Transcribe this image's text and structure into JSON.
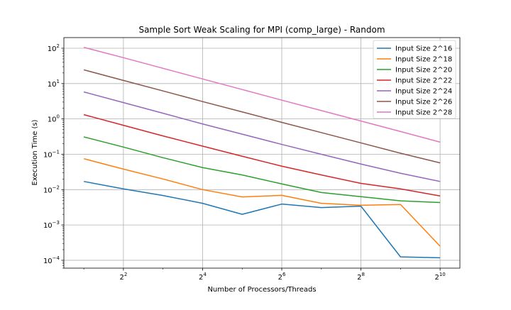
{
  "chart_data": {
    "type": "line",
    "title": "Sample Sort Weak Scaling for MPI (comp_large) - Random",
    "xlabel": "Number of Processors/Threads",
    "ylabel": "Execution Time (s)",
    "x_scale": "log2",
    "y_scale": "log10",
    "xlim": [
      1.41,
      1448
    ],
    "ylim": [
      6e-05,
      200
    ],
    "grid": true,
    "legend_position": "upper-right",
    "x_ticks": [
      {
        "value": 4,
        "base": "2",
        "exp": "2"
      },
      {
        "value": 16,
        "base": "2",
        "exp": "4"
      },
      {
        "value": 64,
        "base": "2",
        "exp": "6"
      },
      {
        "value": 256,
        "base": "2",
        "exp": "8"
      },
      {
        "value": 1024,
        "base": "2",
        "exp": "10"
      }
    ],
    "y_ticks": [
      {
        "value": 0.0001,
        "base": "10",
        "exp": "−4"
      },
      {
        "value": 0.001,
        "base": "10",
        "exp": "−3"
      },
      {
        "value": 0.01,
        "base": "10",
        "exp": "−2"
      },
      {
        "value": 0.1,
        "base": "10",
        "exp": "−1"
      },
      {
        "value": 1,
        "base": "10",
        "exp": "0"
      },
      {
        "value": 10,
        "base": "10",
        "exp": "1"
      },
      {
        "value": 100,
        "base": "10",
        "exp": "2"
      }
    ],
    "x": [
      2,
      4,
      8,
      16,
      32,
      64,
      128,
      256,
      512,
      1024
    ],
    "series": [
      {
        "name": "Input Size 2^16",
        "color": "#1f77b4",
        "values": [
          0.017,
          0.0105,
          0.0068,
          0.0041,
          0.002,
          0.0039,
          0.0031,
          0.0034,
          0.000125,
          0.000118
        ]
      },
      {
        "name": "Input Size 2^18",
        "color": "#ff7f0e",
        "values": [
          0.075,
          0.038,
          0.02,
          0.01,
          0.0062,
          0.0069,
          0.0041,
          0.0036,
          0.0038,
          0.00025
        ]
      },
      {
        "name": "Input Size 2^20",
        "color": "#2ca02c",
        "values": [
          0.31,
          0.16,
          0.08,
          0.042,
          0.026,
          0.0145,
          0.0083,
          0.0063,
          0.0048,
          0.0043
        ]
      },
      {
        "name": "Input Size 2^22",
        "color": "#d62728",
        "values": [
          1.32,
          0.66,
          0.33,
          0.17,
          0.088,
          0.046,
          0.026,
          0.015,
          0.0105,
          0.0066
        ]
      },
      {
        "name": "Input Size 2^24",
        "color": "#9467bd",
        "values": [
          5.8,
          2.9,
          1.45,
          0.72,
          0.37,
          0.19,
          0.1,
          0.053,
          0.029,
          0.017
        ]
      },
      {
        "name": "Input Size 2^26",
        "color": "#8c564b",
        "values": [
          24.5,
          12.3,
          6.2,
          3.1,
          1.58,
          0.8,
          0.41,
          0.21,
          0.107,
          0.057
        ]
      },
      {
        "name": "Input Size 2^28",
        "color": "#e377c2",
        "values": [
          106,
          54,
          27,
          13.5,
          6.8,
          3.4,
          1.72,
          0.87,
          0.44,
          0.22
        ]
      }
    ]
  }
}
